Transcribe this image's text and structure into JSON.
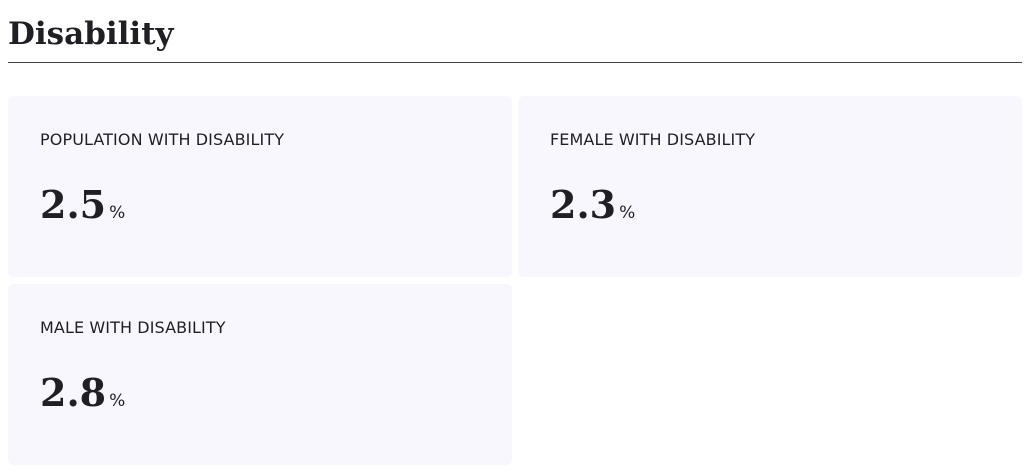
{
  "header": {
    "title": "Disability"
  },
  "cards": [
    {
      "label": "POPULATION WITH DISABILITY",
      "value": "2.5",
      "unit": "%"
    },
    {
      "label": "FEMALE WITH DISABILITY",
      "value": "2.3",
      "unit": "%"
    },
    {
      "label": "MALE WITH DISABILITY",
      "value": "2.8",
      "unit": "%"
    }
  ]
}
